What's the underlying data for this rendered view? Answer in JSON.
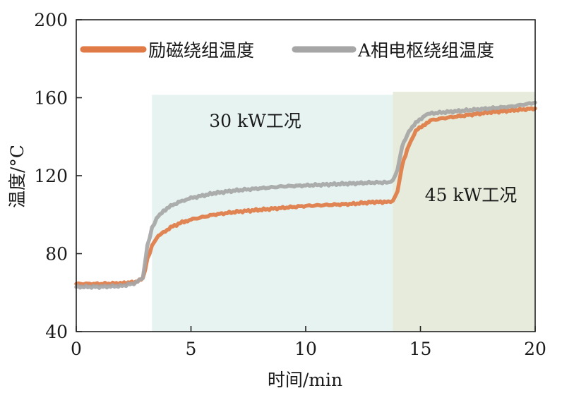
{
  "chart_data": {
    "type": "line",
    "xlabel": "时间/min",
    "ylabel": "温度/°C",
    "xlim": [
      0,
      20
    ],
    "ylim": [
      40,
      200
    ],
    "x_ticks": [
      0,
      5,
      10,
      15,
      20
    ],
    "y_ticks": [
      40,
      80,
      120,
      160,
      200
    ],
    "grid": false,
    "legend_position": "top",
    "regions": [
      {
        "label": "30 kW工况",
        "x_start": 3.3,
        "x_end": 13.8,
        "y_top": 161.5,
        "label_x": 7.8,
        "label_y": 145,
        "color": "#e6f3f1"
      },
      {
        "label": "45 kW工况",
        "x_start": 13.8,
        "x_end": 20,
        "y_top": 163,
        "label_x": 17.2,
        "label_y": 107,
        "color": "#e6ebdb"
      }
    ],
    "series": [
      {
        "name": "励磁绕组温度",
        "color": "#e07b47",
        "x": [
          0,
          1,
          2,
          2.6,
          2.9,
          3.1,
          3.3,
          3.5,
          3.8,
          4.2,
          4.7,
          5,
          6,
          7,
          8,
          9,
          10,
          11,
          12,
          13,
          13.6,
          13.8,
          14.0,
          14.2,
          14.5,
          14.8,
          15.2,
          15.5,
          16,
          17,
          18,
          19,
          20
        ],
        "values": [
          64.5,
          64.5,
          64.8,
          65.5,
          67,
          77,
          84,
          88,
          91,
          94,
          96.5,
          97.5,
          100,
          101.5,
          102.5,
          103.5,
          104.5,
          105,
          105.5,
          106.5,
          106.5,
          107,
          112,
          125,
          136,
          143,
          146.5,
          148.5,
          149.5,
          151,
          152.5,
          153.5,
          154.5
        ]
      },
      {
        "name": "A相电枢绕组温度",
        "color": "#a6a6a6",
        "x": [
          0,
          1,
          2,
          2.6,
          2.9,
          3.1,
          3.3,
          3.5,
          3.8,
          4.2,
          4.7,
          5,
          6,
          7,
          8,
          9,
          10,
          11,
          12,
          13,
          13.6,
          13.8,
          14.0,
          14.2,
          14.5,
          14.8,
          15.2,
          15.5,
          16,
          17,
          18,
          19,
          20
        ],
        "values": [
          63,
          63,
          63.5,
          65,
          67.5,
          84,
          93,
          98,
          102,
          105,
          107.5,
          108.5,
          111,
          112.5,
          113.5,
          114.5,
          115,
          115.5,
          116,
          116.5,
          116.5,
          117.5,
          123,
          135,
          143,
          147,
          151,
          152,
          152.5,
          153.5,
          154.5,
          155.5,
          157.5
        ]
      }
    ]
  }
}
